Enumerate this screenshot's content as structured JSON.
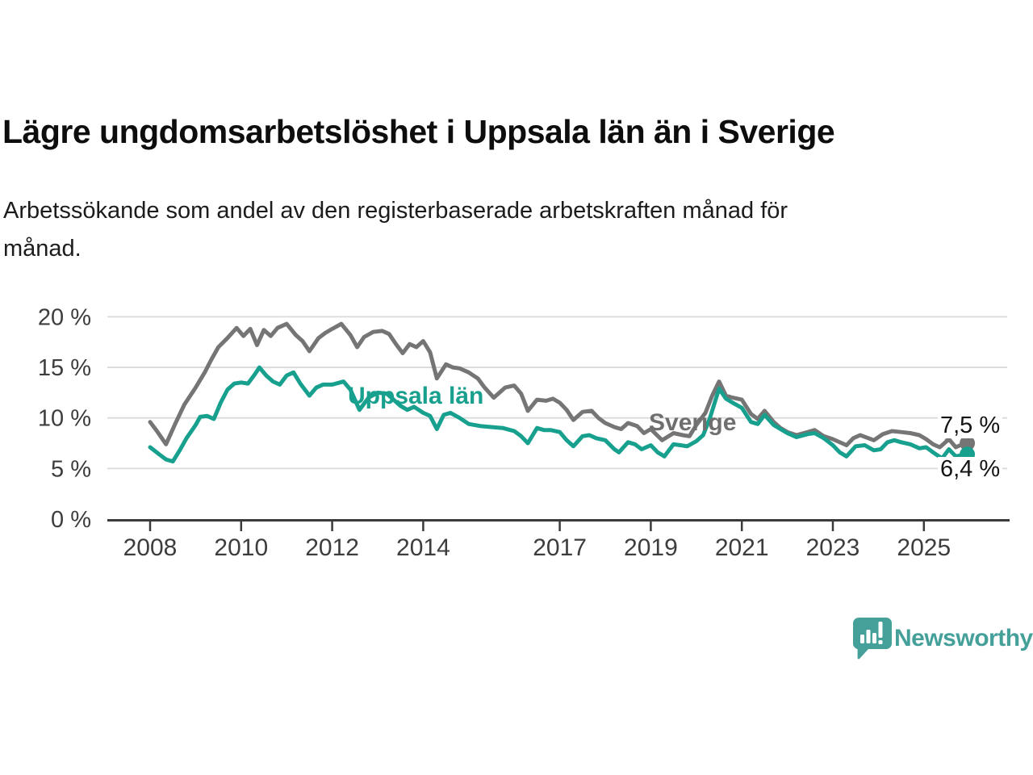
{
  "header": {
    "title": "Lägre ungdomsarbetslöshet i Uppsala län än i Sverige",
    "subtitle": "Arbetssökande som andel av den registerbaserade arbetskraften månad för månad.",
    "subtitle_lines": [
      "Arbetssökande som andel av den registerbaserade arbetskraften månad för",
      "månad."
    ]
  },
  "branding": {
    "logo_text": "Newsworthy",
    "logo_icon": "newsworthy-speech-bubble-bar-chart-icon",
    "logo_color": "#45a09a"
  },
  "chart_data": {
    "type": "line",
    "title": "Lägre ungdomsarbetslöshet i Uppsala län än i Sverige",
    "xlabel": "",
    "ylabel": "",
    "grid": "horizontal",
    "x_axis": {
      "unit": "year",
      "tick_years": [
        2008,
        2010,
        2012,
        2014,
        2017,
        2019,
        2021,
        2023,
        2025
      ],
      "range": [
        2007.9,
        2026.2
      ]
    },
    "y_axis": {
      "tick_values": [
        0,
        5,
        10,
        15,
        20
      ],
      "tick_labels": [
        "0 %",
        "5 %",
        "10 %",
        "15 %",
        "20 %"
      ],
      "ylim": [
        0,
        21.5
      ]
    },
    "colors": {
      "sverige": "#757575",
      "uppsala": "#18a08e",
      "gridline": "#d9d9d9",
      "axis": "#3b3b3b",
      "axis_text": "#3d3d3d"
    },
    "series": [
      {
        "name": "Sverige",
        "color": "#757575",
        "end_label": "7,5 %",
        "end_value": 7.5,
        "points": [
          [
            2008.0,
            9.6
          ],
          [
            2008.15,
            8.7
          ],
          [
            2008.35,
            7.4
          ],
          [
            2008.55,
            9.4
          ],
          [
            2008.75,
            11.3
          ],
          [
            2009.0,
            13.0
          ],
          [
            2009.2,
            14.5
          ],
          [
            2009.35,
            15.8
          ],
          [
            2009.5,
            17.0
          ],
          [
            2009.7,
            17.9
          ],
          [
            2009.9,
            18.9
          ],
          [
            2010.05,
            18.1
          ],
          [
            2010.2,
            18.8
          ],
          [
            2010.35,
            17.2
          ],
          [
            2010.5,
            18.7
          ],
          [
            2010.65,
            18.1
          ],
          [
            2010.8,
            18.9
          ],
          [
            2011.0,
            19.3
          ],
          [
            2011.2,
            18.2
          ],
          [
            2011.35,
            17.6
          ],
          [
            2011.5,
            16.6
          ],
          [
            2011.7,
            17.9
          ],
          [
            2011.85,
            18.4
          ],
          [
            2012.0,
            18.8
          ],
          [
            2012.2,
            19.3
          ],
          [
            2012.4,
            18.2
          ],
          [
            2012.55,
            17.0
          ],
          [
            2012.7,
            18.0
          ],
          [
            2012.9,
            18.5
          ],
          [
            2013.1,
            18.6
          ],
          [
            2013.25,
            18.3
          ],
          [
            2013.4,
            17.3
          ],
          [
            2013.55,
            16.4
          ],
          [
            2013.7,
            17.3
          ],
          [
            2013.85,
            17.0
          ],
          [
            2014.0,
            17.6
          ],
          [
            2014.15,
            16.5
          ],
          [
            2014.3,
            13.9
          ],
          [
            2014.5,
            15.3
          ],
          [
            2014.65,
            15.0
          ],
          [
            2014.8,
            14.9
          ],
          [
            2015.0,
            14.5
          ],
          [
            2015.2,
            13.9
          ],
          [
            2015.35,
            13.0
          ],
          [
            2015.55,
            12.0
          ],
          [
            2015.8,
            13.0
          ],
          [
            2016.0,
            13.2
          ],
          [
            2016.15,
            12.4
          ],
          [
            2016.3,
            10.7
          ],
          [
            2016.5,
            11.8
          ],
          [
            2016.7,
            11.7
          ],
          [
            2016.85,
            11.9
          ],
          [
            2017.0,
            11.5
          ],
          [
            2017.15,
            10.8
          ],
          [
            2017.3,
            9.8
          ],
          [
            2017.5,
            10.6
          ],
          [
            2017.7,
            10.7
          ],
          [
            2017.85,
            10.0
          ],
          [
            2018.0,
            9.5
          ],
          [
            2018.2,
            9.1
          ],
          [
            2018.35,
            8.9
          ],
          [
            2018.5,
            9.5
          ],
          [
            2018.7,
            9.2
          ],
          [
            2018.85,
            8.5
          ],
          [
            2019.0,
            8.9
          ],
          [
            2019.25,
            7.8
          ],
          [
            2019.5,
            8.5
          ],
          [
            2019.7,
            8.3
          ],
          [
            2019.85,
            8.2
          ],
          [
            2020.0,
            9.3
          ],
          [
            2020.2,
            10.5
          ],
          [
            2020.35,
            12.2
          ],
          [
            2020.5,
            13.6
          ],
          [
            2020.65,
            12.2
          ],
          [
            2020.8,
            12.0
          ],
          [
            2021.0,
            11.8
          ],
          [
            2021.2,
            10.4
          ],
          [
            2021.35,
            9.9
          ],
          [
            2021.5,
            10.7
          ],
          [
            2021.7,
            9.6
          ],
          [
            2021.85,
            9.0
          ],
          [
            2022.0,
            8.6
          ],
          [
            2022.2,
            8.3
          ],
          [
            2022.45,
            8.6
          ],
          [
            2022.6,
            8.8
          ],
          [
            2022.8,
            8.2
          ],
          [
            2023.0,
            7.9
          ],
          [
            2023.3,
            7.3
          ],
          [
            2023.45,
            8.0
          ],
          [
            2023.6,
            8.3
          ],
          [
            2023.9,
            7.8
          ],
          [
            2024.1,
            8.4
          ],
          [
            2024.3,
            8.7
          ],
          [
            2024.5,
            8.6
          ],
          [
            2024.7,
            8.5
          ],
          [
            2024.9,
            8.3
          ],
          [
            2025.05,
            7.9
          ],
          [
            2025.2,
            7.4
          ],
          [
            2025.35,
            7.1
          ],
          [
            2025.55,
            7.9
          ],
          [
            2025.7,
            7.1
          ],
          [
            2025.9,
            7.5
          ]
        ]
      },
      {
        "name": "Uppsala län",
        "color": "#18a08e",
        "end_label": "6,4 %",
        "end_value": 6.4,
        "points": [
          [
            2008.0,
            7.1
          ],
          [
            2008.2,
            6.4
          ],
          [
            2008.35,
            5.9
          ],
          [
            2008.5,
            5.7
          ],
          [
            2008.65,
            6.8
          ],
          [
            2008.8,
            8.0
          ],
          [
            2009.0,
            9.3
          ],
          [
            2009.1,
            10.1
          ],
          [
            2009.25,
            10.2
          ],
          [
            2009.4,
            9.9
          ],
          [
            2009.55,
            11.5
          ],
          [
            2009.7,
            12.8
          ],
          [
            2009.85,
            13.4
          ],
          [
            2010.0,
            13.5
          ],
          [
            2010.15,
            13.4
          ],
          [
            2010.3,
            14.3
          ],
          [
            2010.4,
            15.0
          ],
          [
            2010.55,
            14.2
          ],
          [
            2010.7,
            13.6
          ],
          [
            2010.85,
            13.3
          ],
          [
            2011.0,
            14.2
          ],
          [
            2011.15,
            14.5
          ],
          [
            2011.3,
            13.4
          ],
          [
            2011.5,
            12.2
          ],
          [
            2011.65,
            13.0
          ],
          [
            2011.8,
            13.3
          ],
          [
            2012.0,
            13.3
          ],
          [
            2012.25,
            13.6
          ],
          [
            2012.4,
            12.8
          ],
          [
            2012.6,
            10.8
          ],
          [
            2012.8,
            12.0
          ],
          [
            2013.0,
            12.5
          ],
          [
            2013.2,
            12.4
          ],
          [
            2013.35,
            11.8
          ],
          [
            2013.5,
            11.2
          ],
          [
            2013.65,
            10.8
          ],
          [
            2013.8,
            11.1
          ],
          [
            2014.0,
            10.5
          ],
          [
            2014.15,
            10.2
          ],
          [
            2014.3,
            8.9
          ],
          [
            2014.45,
            10.3
          ],
          [
            2014.6,
            10.5
          ],
          [
            2014.8,
            10.0
          ],
          [
            2015.0,
            9.4
          ],
          [
            2015.25,
            9.2
          ],
          [
            2015.5,
            9.1
          ],
          [
            2015.75,
            9.0
          ],
          [
            2016.0,
            8.7
          ],
          [
            2016.15,
            8.2
          ],
          [
            2016.3,
            7.5
          ],
          [
            2016.5,
            9.0
          ],
          [
            2016.65,
            8.8
          ],
          [
            2016.8,
            8.8
          ],
          [
            2017.0,
            8.6
          ],
          [
            2017.15,
            7.8
          ],
          [
            2017.3,
            7.2
          ],
          [
            2017.5,
            8.2
          ],
          [
            2017.65,
            8.3
          ],
          [
            2017.8,
            8.0
          ],
          [
            2018.0,
            7.8
          ],
          [
            2018.2,
            6.9
          ],
          [
            2018.3,
            6.6
          ],
          [
            2018.5,
            7.6
          ],
          [
            2018.65,
            7.4
          ],
          [
            2018.8,
            6.9
          ],
          [
            2019.0,
            7.3
          ],
          [
            2019.15,
            6.6
          ],
          [
            2019.3,
            6.2
          ],
          [
            2019.5,
            7.4
          ],
          [
            2019.65,
            7.3
          ],
          [
            2019.8,
            7.2
          ],
          [
            2020.0,
            7.7
          ],
          [
            2020.15,
            8.3
          ],
          [
            2020.3,
            10.0
          ],
          [
            2020.5,
            12.9
          ],
          [
            2020.65,
            11.9
          ],
          [
            2020.8,
            11.5
          ],
          [
            2021.0,
            11.0
          ],
          [
            2021.2,
            9.6
          ],
          [
            2021.35,
            9.4
          ],
          [
            2021.5,
            10.3
          ],
          [
            2021.7,
            9.3
          ],
          [
            2021.85,
            8.9
          ],
          [
            2022.0,
            8.5
          ],
          [
            2022.2,
            8.1
          ],
          [
            2022.45,
            8.4
          ],
          [
            2022.6,
            8.5
          ],
          [
            2022.8,
            8.0
          ],
          [
            2023.0,
            7.3
          ],
          [
            2023.15,
            6.6
          ],
          [
            2023.3,
            6.2
          ],
          [
            2023.5,
            7.2
          ],
          [
            2023.7,
            7.3
          ],
          [
            2023.9,
            6.8
          ],
          [
            2024.05,
            6.9
          ],
          [
            2024.2,
            7.6
          ],
          [
            2024.35,
            7.8
          ],
          [
            2024.5,
            7.6
          ],
          [
            2024.7,
            7.4
          ],
          [
            2024.9,
            7.0
          ],
          [
            2025.05,
            7.1
          ],
          [
            2025.2,
            6.6
          ],
          [
            2025.4,
            6.0
          ],
          [
            2025.55,
            6.9
          ],
          [
            2025.7,
            6.2
          ],
          [
            2025.9,
            6.4
          ]
        ]
      }
    ]
  }
}
